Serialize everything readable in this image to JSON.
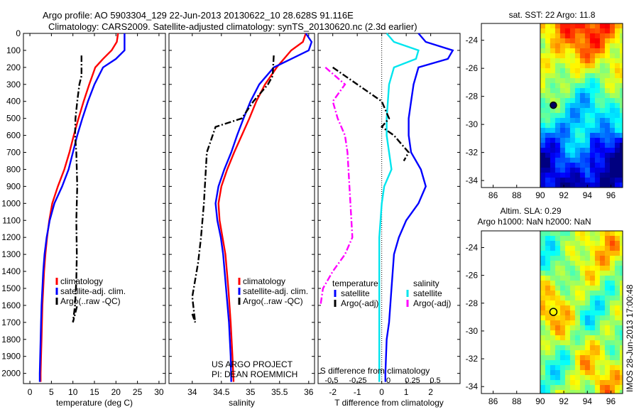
{
  "header": {
    "line1": "Argo profile: AO 5903304_129 22-Jun-2013 20130622_10 28.628S 91.116E",
    "line2": "Climatology: CARS2009. Satellite-adjusted climatology: synTS_20130620.nc (2.3d earlier)"
  },
  "credit": {
    "line1": "US ARGO PROJECT",
    "line2": "PI: DEAN ROEMMICH"
  },
  "footer_stamp": "IMOS 28-Jun-2013 17:00:48",
  "colors": {
    "climatology": "#ff0000",
    "satellite": "#0000ff",
    "argo": "#000000",
    "satellite_salinity": "#00e5ee",
    "argo_salinity_diff": "#ff00ff"
  },
  "chart_data": [
    {
      "id": "temperature",
      "type": "line",
      "xlabel": "temperature (deg C)",
      "xlim": [
        -1.5,
        31.5
      ],
      "ylim": [
        2060,
        0
      ],
      "xticks": [
        0,
        5,
        10,
        15,
        20,
        25,
        30
      ],
      "yticks": [
        0,
        100,
        200,
        300,
        400,
        500,
        600,
        700,
        800,
        900,
        1000,
        1100,
        1200,
        1300,
        1400,
        1500,
        1600,
        1700,
        1800,
        1900,
        2000
      ],
      "legend": [
        "climatology",
        "satellite-adj. clim.",
        "Argo(..raw -QC)"
      ],
      "legend_position": "lower-center",
      "series": [
        {
          "name": "climatology",
          "color": "#ff0000",
          "style": "solid",
          "points": [
            [
              20.5,
              0
            ],
            [
              20.2,
              50
            ],
            [
              19,
              100
            ],
            [
              17,
              150
            ],
            [
              15.2,
              200
            ],
            [
              13.8,
              300
            ],
            [
              12.5,
              400
            ],
            [
              11.3,
              500
            ],
            [
              10.2,
              600
            ],
            [
              9.2,
              700
            ],
            [
              8,
              800
            ],
            [
              6.5,
              900
            ],
            [
              5.2,
              1000
            ],
            [
              4.5,
              1100
            ],
            [
              4,
              1200
            ],
            [
              3.6,
              1300
            ],
            [
              3.3,
              1400
            ],
            [
              3.1,
              1500
            ],
            [
              2.9,
              1600
            ],
            [
              2.8,
              1700
            ],
            [
              2.7,
              1800
            ],
            [
              2.6,
              1900
            ],
            [
              2.5,
              2000
            ],
            [
              2.5,
              2050
            ]
          ]
        },
        {
          "name": "satellite-adj. clim.",
          "color": "#0000ff",
          "style": "solid",
          "points": [
            [
              22,
              0
            ],
            [
              22,
              50
            ],
            [
              22,
              100
            ],
            [
              20,
              150
            ],
            [
              17,
              200
            ],
            [
              15,
              300
            ],
            [
              13.5,
              400
            ],
            [
              12.2,
              500
            ],
            [
              11,
              600
            ],
            [
              10,
              700
            ],
            [
              9,
              800
            ],
            [
              7.5,
              900
            ],
            [
              5.7,
              1000
            ],
            [
              4.6,
              1100
            ],
            [
              3.9,
              1200
            ],
            [
              3.4,
              1300
            ],
            [
              3.1,
              1400
            ],
            [
              2.9,
              1500
            ],
            [
              2.7,
              1600
            ],
            [
              2.6,
              1700
            ],
            [
              2.5,
              1800
            ],
            [
              2.4,
              1900
            ],
            [
              2.3,
              2000
            ],
            [
              2.3,
              2050
            ]
          ]
        },
        {
          "name": "Argo(..raw -QC)",
          "color": "#000000",
          "style": "dashdot",
          "points": [
            [
              12,
              130
            ],
            [
              12,
              250
            ],
            [
              11.5,
              300
            ],
            [
              11,
              400
            ],
            [
              10.6,
              500
            ],
            [
              10.5,
              600
            ],
            [
              10.8,
              700
            ],
            [
              11,
              900
            ],
            [
              10.8,
              1100
            ],
            [
              10.9,
              1300
            ],
            [
              10.8,
              1450
            ],
            [
              10.5,
              1600
            ],
            [
              10,
              1700
            ],
            [
              11,
              1600
            ]
          ]
        }
      ]
    },
    {
      "id": "salinity",
      "type": "line",
      "xlabel": "salinity",
      "xlim": [
        33.6,
        36.1
      ],
      "ylim": [
        2060,
        0
      ],
      "xticks": [
        34,
        34.5,
        35,
        35.5,
        36
      ],
      "legend": [
        "climatology",
        "satellite-adj. clim.",
        "Argo(..raw -QC)"
      ],
      "legend_position": "lower-right",
      "series": [
        {
          "name": "climatology",
          "color": "#ff0000",
          "style": "solid",
          "points": [
            [
              35.95,
              0
            ],
            [
              35.9,
              50
            ],
            [
              35.7,
              100
            ],
            [
              35.45,
              200
            ],
            [
              35.25,
              300
            ],
            [
              35.1,
              400
            ],
            [
              34.98,
              500
            ],
            [
              34.85,
              600
            ],
            [
              34.72,
              700
            ],
            [
              34.6,
              800
            ],
            [
              34.5,
              900
            ],
            [
              34.45,
              1000
            ],
            [
              34.47,
              1100
            ],
            [
              34.52,
              1200
            ],
            [
              34.57,
              1300
            ],
            [
              34.62,
              1500
            ],
            [
              34.66,
              1700
            ],
            [
              34.69,
              1900
            ],
            [
              34.71,
              2050
            ]
          ]
        },
        {
          "name": "satellite-adj. clim.",
          "color": "#0000ff",
          "style": "solid",
          "points": [
            [
              35.95,
              0
            ],
            [
              36.05,
              50
            ],
            [
              36,
              100
            ],
            [
              35.7,
              150
            ],
            [
              35.4,
              200
            ],
            [
              35.15,
              300
            ],
            [
              35,
              400
            ],
            [
              34.88,
              500
            ],
            [
              34.77,
              600
            ],
            [
              34.67,
              700
            ],
            [
              34.55,
              800
            ],
            [
              34.45,
              900
            ],
            [
              34.4,
              1000
            ],
            [
              34.43,
              1100
            ],
            [
              34.49,
              1200
            ],
            [
              34.53,
              1300
            ],
            [
              34.58,
              1500
            ],
            [
              34.63,
              1700
            ],
            [
              34.66,
              1900
            ],
            [
              34.67,
              2050
            ]
          ]
        },
        {
          "name": "Argo(..raw -QC)",
          "color": "#000000",
          "style": "dashdot",
          "points": [
            [
              35.4,
              130
            ],
            [
              35.38,
              250
            ],
            [
              35.3,
              300
            ],
            [
              35.05,
              400
            ],
            [
              34.85,
              500
            ],
            [
              34.4,
              550
            ],
            [
              34.25,
              700
            ],
            [
              34.2,
              1000
            ],
            [
              34.15,
              1200
            ],
            [
              34.1,
              1350
            ],
            [
              34.0,
              1550
            ],
            [
              34.05,
              1700
            ],
            [
              34.0,
              1650
            ]
          ]
        }
      ]
    },
    {
      "id": "difference",
      "type": "line",
      "xlabel": "T difference from climatology",
      "toplabel": "S difference from climatology",
      "xlim": [
        -2.6,
        3.2
      ],
      "ylim": [
        2060,
        0
      ],
      "xticks": [
        -2,
        -1,
        0,
        1,
        2
      ],
      "sticks": [
        "-0.5",
        "-0.25",
        "0",
        "0.25",
        "0.5"
      ],
      "legend_left_title": "temperature",
      "legend_right_title": "salinity",
      "legend": [
        "satellite",
        "Argo(-adj)",
        "satellite",
        "Argo(-adj)"
      ],
      "legend_position": "lower",
      "series": [
        {
          "name": "temperature satellite",
          "color": "#0000ff",
          "style": "solid",
          "points": [
            [
              1.5,
              0
            ],
            [
              1.8,
              50
            ],
            [
              2.9,
              100
            ],
            [
              2.7,
              150
            ],
            [
              1.5,
              200
            ],
            [
              1.3,
              300
            ],
            [
              1.2,
              400
            ],
            [
              1.1,
              500
            ],
            [
              1.1,
              600
            ],
            [
              1.2,
              700
            ],
            [
              1.6,
              800
            ],
            [
              1.8,
              900
            ],
            [
              1.5,
              1000
            ],
            [
              1.0,
              1100
            ],
            [
              0.7,
              1200
            ],
            [
              0.5,
              1300
            ],
            [
              0.4,
              1500
            ],
            [
              0.3,
              1700
            ],
            [
              0.2,
              1800
            ],
            [
              0.15,
              2000
            ],
            [
              0.15,
              2050
            ]
          ]
        },
        {
          "name": "salinity satellite",
          "color": "#00e5ee",
          "style": "solid",
          "points": [
            [
              0.2,
              0
            ],
            [
              0.5,
              50
            ],
            [
              1.5,
              100
            ],
            [
              1.4,
              150
            ],
            [
              0.5,
              200
            ],
            [
              0.3,
              300
            ],
            [
              0.25,
              400
            ],
            [
              0.2,
              500
            ],
            [
              0.2,
              600
            ],
            [
              0.3,
              700
            ],
            [
              0.4,
              800
            ],
            [
              0.1,
              900
            ],
            [
              0,
              1000
            ],
            [
              -0.1,
              1200
            ],
            [
              -0.1,
              1500
            ],
            [
              -0.1,
              1800
            ],
            [
              -0.1,
              2000
            ],
            [
              -0.1,
              2050
            ]
          ]
        },
        {
          "name": "temperature Argo(-adj)",
          "color": "#000000",
          "style": "dashdot",
          "points": [
            [
              -2,
              200
            ],
            [
              -1.5,
              250
            ],
            [
              0,
              400
            ],
            [
              0.3,
              500
            ],
            [
              0,
              550
            ],
            [
              0.5,
              600
            ],
            [
              0.8,
              650
            ],
            [
              1.1,
              700
            ],
            [
              0.9,
              750
            ]
          ]
        },
        {
          "name": "salinity Argo(-adj)",
          "color": "#ff00ff",
          "style": "dashdot",
          "points": [
            [
              -2.3,
              200
            ],
            [
              -1.5,
              300
            ],
            [
              -2,
              400
            ],
            [
              -1.8,
              500
            ],
            [
              -1.5,
              600
            ],
            [
              -1.4,
              700
            ],
            [
              -1.2,
              1200
            ],
            [
              -1.5,
              1300
            ],
            [
              -2,
              1400
            ],
            [
              -2.4,
              1500
            ],
            [
              -2.5,
              1600
            ]
          ]
        }
      ]
    },
    {
      "id": "sst_map",
      "type": "heatmap",
      "title": "sat. SST: 22 Argo: 11.8",
      "xlim": [
        85,
        97
      ],
      "ylim": [
        -34.5,
        -22.8
      ],
      "xticks": [
        86,
        88,
        90,
        92,
        94,
        96
      ],
      "yticks": [
        -24,
        -26,
        -28,
        -30,
        -32,
        -34
      ],
      "data_xmin": 90,
      "argo_position": [
        91.116,
        -28.628
      ]
    },
    {
      "id": "sla_map",
      "type": "heatmap",
      "title_line1": "Altim. SLA: 0.29",
      "title_line2": "Argo h1000: NaN h2000: NaN",
      "xlim": [
        85,
        97
      ],
      "ylim": [
        -34.5,
        -22.8
      ],
      "xticks": [
        86,
        88,
        90,
        92,
        94,
        96
      ],
      "yticks": [
        -24,
        -26,
        -28,
        -30,
        -32,
        -34
      ],
      "data_xmin": 90,
      "argo_position": [
        91.116,
        -28.628
      ]
    }
  ]
}
